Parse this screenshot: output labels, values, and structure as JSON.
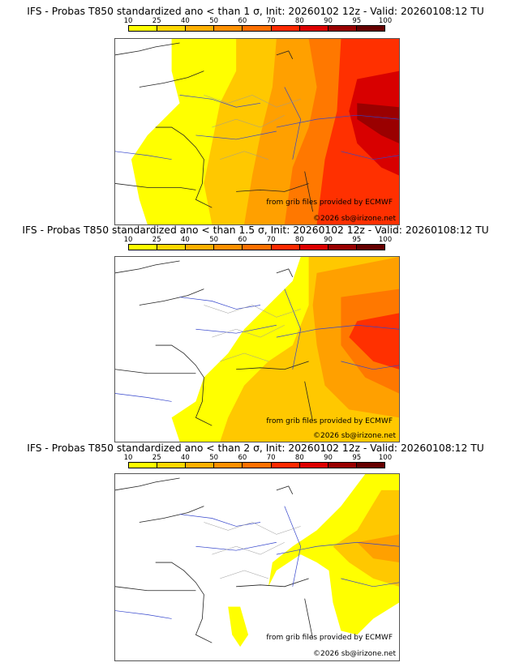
{
  "colorbar": {
    "ticks": [
      "10",
      "25",
      "40",
      "50",
      "60",
      "70",
      "80",
      "90",
      "95",
      "100"
    ],
    "colors": [
      "#ffff00",
      "#ffd700",
      "#ffb000",
      "#ff9000",
      "#ff7000",
      "#ff2a00",
      "#dd0000",
      "#990000",
      "#660000"
    ]
  },
  "panels": [
    {
      "title": "IFS - Probas T850  standardized ano < than 1 σ, Init: 20260102 12z - Valid: 20260108:12 TU",
      "threshold_sigma": "1",
      "credit_source": "from grib files provided by ECMWF",
      "credit_copyright": "©2026 sb@irizone.net"
    },
    {
      "title": "IFS - Probas T850  standardized ano < than 1.5 σ, Init: 20260102 12z - Valid: 20260108:12 TU",
      "threshold_sigma": "1.5",
      "credit_source": "from grib files provided by ECMWF",
      "credit_copyright": "©2026 sb@irizone.net"
    },
    {
      "title": "IFS - Probas T850  standardized ano < than 2 σ, Init: 20260102 12z - Valid: 20260108:12 TU",
      "threshold_sigma": "2",
      "credit_source": "from grib files provided by ECMWF",
      "credit_copyright": "©2026 sb@irizone.net"
    }
  ]
}
